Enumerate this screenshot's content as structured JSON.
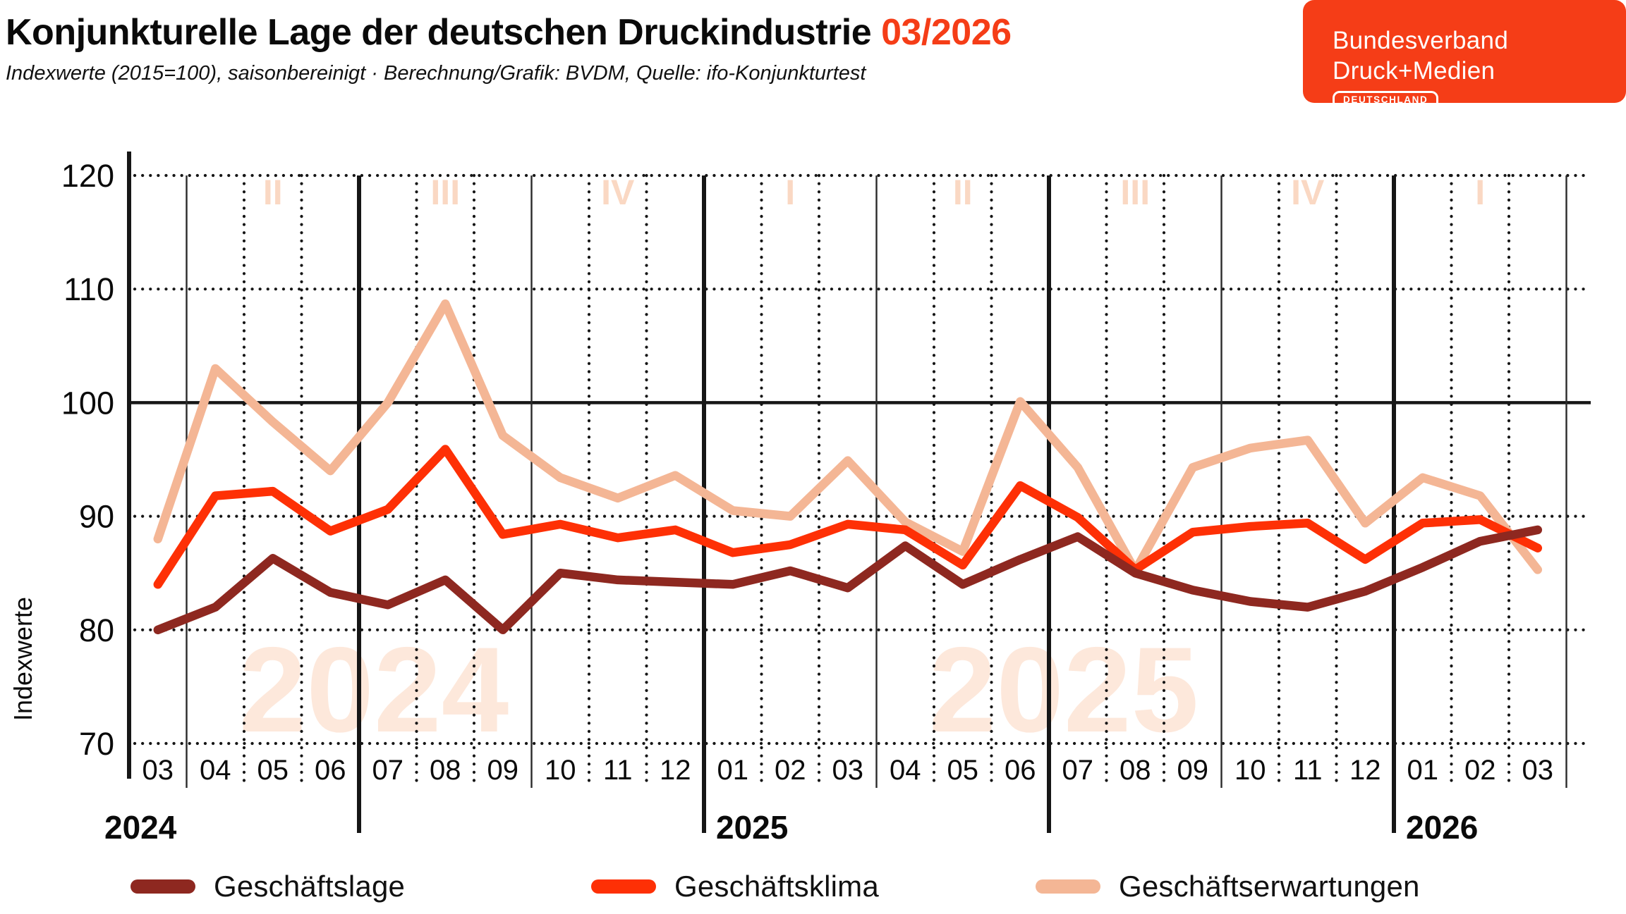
{
  "header": {
    "title": "Konjunkturelle Lage der deutschen Druckindustrie",
    "date_accent": "03/2026",
    "subtitle": "Indexwerte (2015=100), saisonbereinigt · Berechnung/Grafik: BVDM, Quelle: ifo-Konjunkturtest",
    "accent_color": "#F53D17"
  },
  "logo": {
    "line1": "Bundesverband",
    "line2": "Druck+Medien",
    "badge": "DEUTSCHLAND",
    "bg_color": "#F53D17",
    "text_color": "#FFFFFF"
  },
  "chart_data": {
    "type": "line",
    "ylabel": "Indexwerte",
    "yticks": [
      120,
      110,
      100,
      90,
      80,
      70
    ],
    "ylim": [
      70,
      120
    ],
    "grid": "horizontal dotted at 70/80/90/110/120, solid at 100; vertical dotted each month, thin solid each quarter, thick solid each half-year/year",
    "x_labels": [
      "03",
      "04",
      "05",
      "06",
      "07",
      "08",
      "09",
      "10",
      "11",
      "12",
      "01",
      "02",
      "03",
      "04",
      "05",
      "06",
      "07",
      "08",
      "09",
      "10",
      "11",
      "12",
      "01",
      "02",
      "03"
    ],
    "years": [
      {
        "label": "2024",
        "start_index": 0
      },
      {
        "label": "2025",
        "start_index": 10
      },
      {
        "label": "2026",
        "start_index": 22
      }
    ],
    "quarter_labels": [
      "II",
      "III",
      "IV",
      "I",
      "II",
      "III",
      "IV",
      "I"
    ],
    "watermarks": [
      "2024",
      "2025"
    ],
    "legend_position": "bottom",
    "series": [
      {
        "name": "Geschäftslage",
        "color": "#8E2820",
        "values": [
          80.0,
          82.0,
          86.3,
          83.3,
          82.2,
          84.4,
          80.0,
          85.0,
          84.4,
          84.2,
          84.0,
          85.2,
          83.7,
          87.4,
          84.0,
          86.2,
          88.2,
          85.0,
          83.5,
          82.5,
          82.0,
          83.4,
          85.5,
          87.8,
          88.8
        ]
      },
      {
        "name": "Geschäftsklima",
        "color": "#FE3005",
        "values": [
          84.0,
          91.8,
          92.2,
          88.7,
          90.6,
          95.9,
          88.4,
          89.3,
          88.1,
          88.8,
          86.8,
          87.5,
          89.3,
          88.8,
          85.7,
          92.7,
          89.9,
          85.3,
          88.6,
          89.1,
          89.4,
          86.2,
          89.4,
          89.7,
          87.2
        ]
      },
      {
        "name": "Geschäftserwartungen",
        "color": "#F4B695",
        "values": [
          88.0,
          103.0,
          98.3,
          94.0,
          100.0,
          108.7,
          97.1,
          93.4,
          91.6,
          93.6,
          90.5,
          90.0,
          94.9,
          89.5,
          86.9,
          100.1,
          94.3,
          85.2,
          94.3,
          96.0,
          96.7,
          89.4,
          93.4,
          91.8,
          85.3
        ]
      }
    ]
  },
  "colors": {
    "quarter_label": "#FAD8C3",
    "watermark": "#FDE8DB",
    "grid": "#161616",
    "text": "#0A0A0A"
  }
}
